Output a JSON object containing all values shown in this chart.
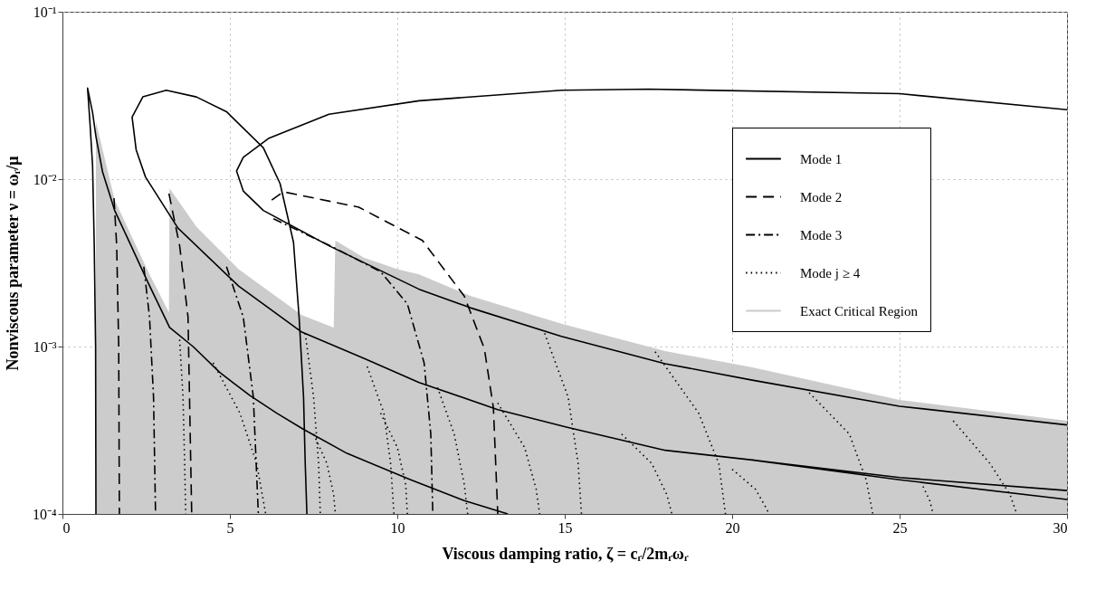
{
  "chart_data": {
    "type": "line",
    "xlabel": "Viscous damping ratio, ζ = cᵣ/2mᵣωᵣ",
    "ylabel": "Nonviscous parameter ν = ωᵣ/μ",
    "xlim": [
      0,
      30
    ],
    "xticks": [
      0,
      5,
      10,
      15,
      20,
      25,
      30
    ],
    "ylim": [
      0.0001,
      0.1
    ],
    "yticks": [
      {
        "value": 0.0001,
        "label": "10⁻⁴"
      },
      {
        "value": 0.001,
        "label": "10⁻³"
      },
      {
        "value": 0.01,
        "label": "10⁻²"
      },
      {
        "value": 0.1,
        "label": "10⁻¹"
      }
    ],
    "log": "y",
    "grid": true,
    "legend": "right",
    "series": [
      {
        "name": "Mode 1",
        "color": "#000000",
        "line_style": "solid",
        "x": [
          1.0,
          0.99,
          0.95,
          0.9,
          0.82,
          0.75,
          0.9,
          1.0,
          1.2,
          1.56,
          2.0,
          2.56,
          3.2,
          3.9,
          4.7,
          5.6,
          6.4,
          7.2,
          8.5,
          10.4,
          12,
          13.3,
          null,
          7.3,
          7.25,
          7.2,
          7.07,
          6.9,
          6.5,
          6.0,
          4.9,
          4.0,
          3.1,
          2.4,
          2.08,
          2.2,
          2.48,
          3.45,
          5.26,
          7.15,
          9,
          10.65,
          13.0,
          15.05,
          18.0,
          20.6,
          25,
          30,
          null,
          30,
          25,
          17.5,
          14.9,
          10.65,
          7.96,
          6.15,
          5.4,
          5.2,
          5.4,
          6.0,
          7.96,
          10.65,
          12.2,
          14.9,
          18.0,
          20.6,
          25,
          30,
          null,
          20.6,
          25,
          30
        ],
        "values": [
          0.0001,
          0.001,
          0.004,
          0.012,
          0.022,
          0.035,
          0.025,
          0.018,
          0.011,
          0.0065,
          0.0042,
          0.0024,
          0.0013,
          0.001,
          0.0007,
          0.00051,
          0.0004,
          0.00032,
          0.00023,
          0.00016,
          0.00012,
          0.0001,
          null,
          0.0001,
          0.0002,
          0.0005,
          0.00147,
          0.0042,
          0.0094,
          0.0154,
          0.0253,
          0.031,
          0.034,
          0.031,
          0.0235,
          0.015,
          0.0103,
          0.0051,
          0.0023,
          0.00122,
          0.00085,
          0.00061,
          0.00042,
          0.00033,
          0.00024,
          0.00021,
          0.000165,
          0.000138,
          null,
          0.026,
          0.0324,
          0.0345,
          0.034,
          0.0294,
          0.0244,
          0.0175,
          0.0135,
          0.0112,
          0.0085,
          0.0065,
          0.004,
          0.0022,
          0.0017,
          0.00115,
          0.00079,
          0.00063,
          0.00044,
          0.00034,
          null,
          0.00021,
          0.00016,
          0.000122
        ]
      },
      {
        "name": "Mode 2",
        "color": "#000000",
        "line_style": "dashed",
        "x": [
          1.54,
          1.62,
          1.68,
          1.7,
          null,
          3.18,
          3.5,
          3.75,
          3.86,
          null,
          6.25,
          6.6,
          8.85,
          10.75,
          12.0,
          12.6,
          12.87,
          13.0
        ],
        "values": [
          0.0077,
          0.004,
          0.001,
          0.0001,
          null,
          0.0082,
          0.004,
          0.0015,
          0.0001,
          null,
          0.0075,
          0.0084,
          0.0068,
          0.0043,
          0.002,
          0.00097,
          0.00043,
          0.0001
        ]
      },
      {
        "name": "Mode 3",
        "color": "#000000",
        "line_style": "dashdot",
        "x": [
          2.43,
          2.6,
          2.72,
          2.78,
          null,
          4.9,
          5.4,
          5.7,
          5.85,
          null,
          6.3,
          8,
          9.5,
          10.3,
          10.8,
          11.0,
          11.06
        ],
        "values": [
          0.003,
          0.0015,
          0.0005,
          0.0001,
          null,
          0.003,
          0.0015,
          0.0005,
          0.0001,
          null,
          0.0058,
          0.004,
          0.0028,
          0.0018,
          0.0008,
          0.0003,
          0.0001
        ]
      },
      {
        "name": "Mode j ≥ 4",
        "color": "#000000",
        "line_style": "dotted",
        "x": [
          3.5,
          3.6,
          3.65,
          3.68,
          null,
          4.5,
          5.3,
          5.8,
          6.07,
          null,
          7.25,
          7.5,
          7.65,
          7.7,
          null,
          7.5,
          7.9,
          8.1,
          8.15,
          null,
          9.1,
          9.6,
          9.8,
          9.9,
          null,
          9.5,
          10.0,
          10.25,
          10.3,
          null,
          11.2,
          11.7,
          12.0,
          12.1,
          null,
          13.0,
          13.8,
          14.15,
          14.25,
          null,
          14.4,
          15.1,
          15.4,
          15.5,
          null,
          16.7,
          17.6,
          18.05,
          18.2,
          null,
          17.7,
          19.0,
          19.6,
          19.8,
          null,
          20.0,
          20.7,
          21.0,
          21.1,
          null,
          22.3,
          23.5,
          24.0,
          24.2,
          null,
          25.7,
          25.9,
          26.0,
          null,
          26.6,
          27.7,
          28.3,
          28.5
        ],
        "values": [
          0.0011,
          0.0005,
          0.0002,
          0.0001,
          null,
          0.0008,
          0.0004,
          0.0002,
          0.0001,
          null,
          0.0012,
          0.0005,
          0.0002,
          0.0001,
          null,
          0.0003,
          0.0002,
          0.00013,
          0.0001,
          null,
          0.00076,
          0.0004,
          0.0002,
          0.0001,
          null,
          0.0004,
          0.00025,
          0.00015,
          0.0001,
          null,
          0.00057,
          0.0003,
          0.00015,
          0.0001,
          null,
          0.00046,
          0.00025,
          0.00014,
          0.0001,
          null,
          0.0012,
          0.0005,
          0.0002,
          0.0001,
          null,
          0.0003,
          0.0002,
          0.00013,
          0.0001,
          null,
          0.00093,
          0.0004,
          0.0002,
          0.0001,
          null,
          0.000185,
          0.00014,
          0.00011,
          0.0001,
          null,
          0.00053,
          0.0003,
          0.00016,
          0.0001,
          null,
          0.000146,
          0.00012,
          0.0001,
          null,
          0.00036,
          0.0002,
          0.00013,
          0.0001
        ]
      },
      {
        "name": "Exact Critical Region",
        "type": "area",
        "color": "#cccccc",
        "x": [
          1.0,
          1.56,
          2.56,
          3.18,
          3.2,
          4.0,
          5.26,
          7.15,
          8.1,
          8.15,
          9.0,
          10.0,
          10.65,
          12.2,
          14.9,
          18.0,
          20.6,
          25,
          30
        ],
        "values": [
          0.022,
          0.0075,
          0.0028,
          0.0016,
          0.0088,
          0.0052,
          0.0029,
          0.00154,
          0.0013,
          0.0043,
          0.0034,
          0.0029,
          0.0027,
          0.002,
          0.00137,
          0.00094,
          0.00075,
          0.00048,
          0.00036
        ]
      }
    ]
  }
}
